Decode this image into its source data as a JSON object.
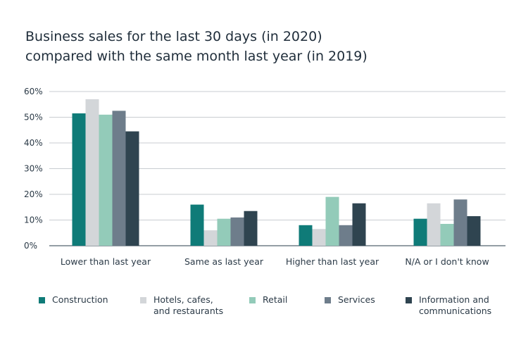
{
  "title_lines": [
    "Business sales for the last 30 days (in 2020)",
    "compared with the same month last year (in 2019)"
  ],
  "chart_data": {
    "type": "bar",
    "title": "Business sales for the last 30 days (in 2020) compared with the same month last year (in 2019)",
    "xlabel": "",
    "ylabel": "",
    "categories": [
      "Lower than last year",
      "Same as last year",
      "Higher than last year",
      "N/A or I don't know"
    ],
    "ylim": [
      0,
      60
    ],
    "yticks": [
      0,
      10,
      20,
      30,
      40,
      50,
      60
    ],
    "ytick_labels": [
      "0%",
      "10%",
      "20%",
      "30%",
      "40%",
      "50%",
      "60%"
    ],
    "grid": true,
    "legend_position": "bottom",
    "series": [
      {
        "name": "Construction",
        "color": "#0f7b78",
        "values": [
          51.5,
          16,
          8,
          10.5
        ]
      },
      {
        "name": "Hotels, cafes,\nand restaurants",
        "color": "#d3d6d9",
        "values": [
          57,
          6,
          6.5,
          16.5
        ]
      },
      {
        "name": "Retail",
        "color": "#93cbb9",
        "values": [
          51,
          10.5,
          19,
          8.5
        ]
      },
      {
        "name": "Services",
        "color": "#6e7d8b",
        "values": [
          52.5,
          11,
          8,
          18
        ]
      },
      {
        "name": "Information and\ncommunications",
        "color": "#2f4450",
        "values": [
          44.5,
          13.5,
          16.5,
          11.5
        ]
      }
    ]
  }
}
